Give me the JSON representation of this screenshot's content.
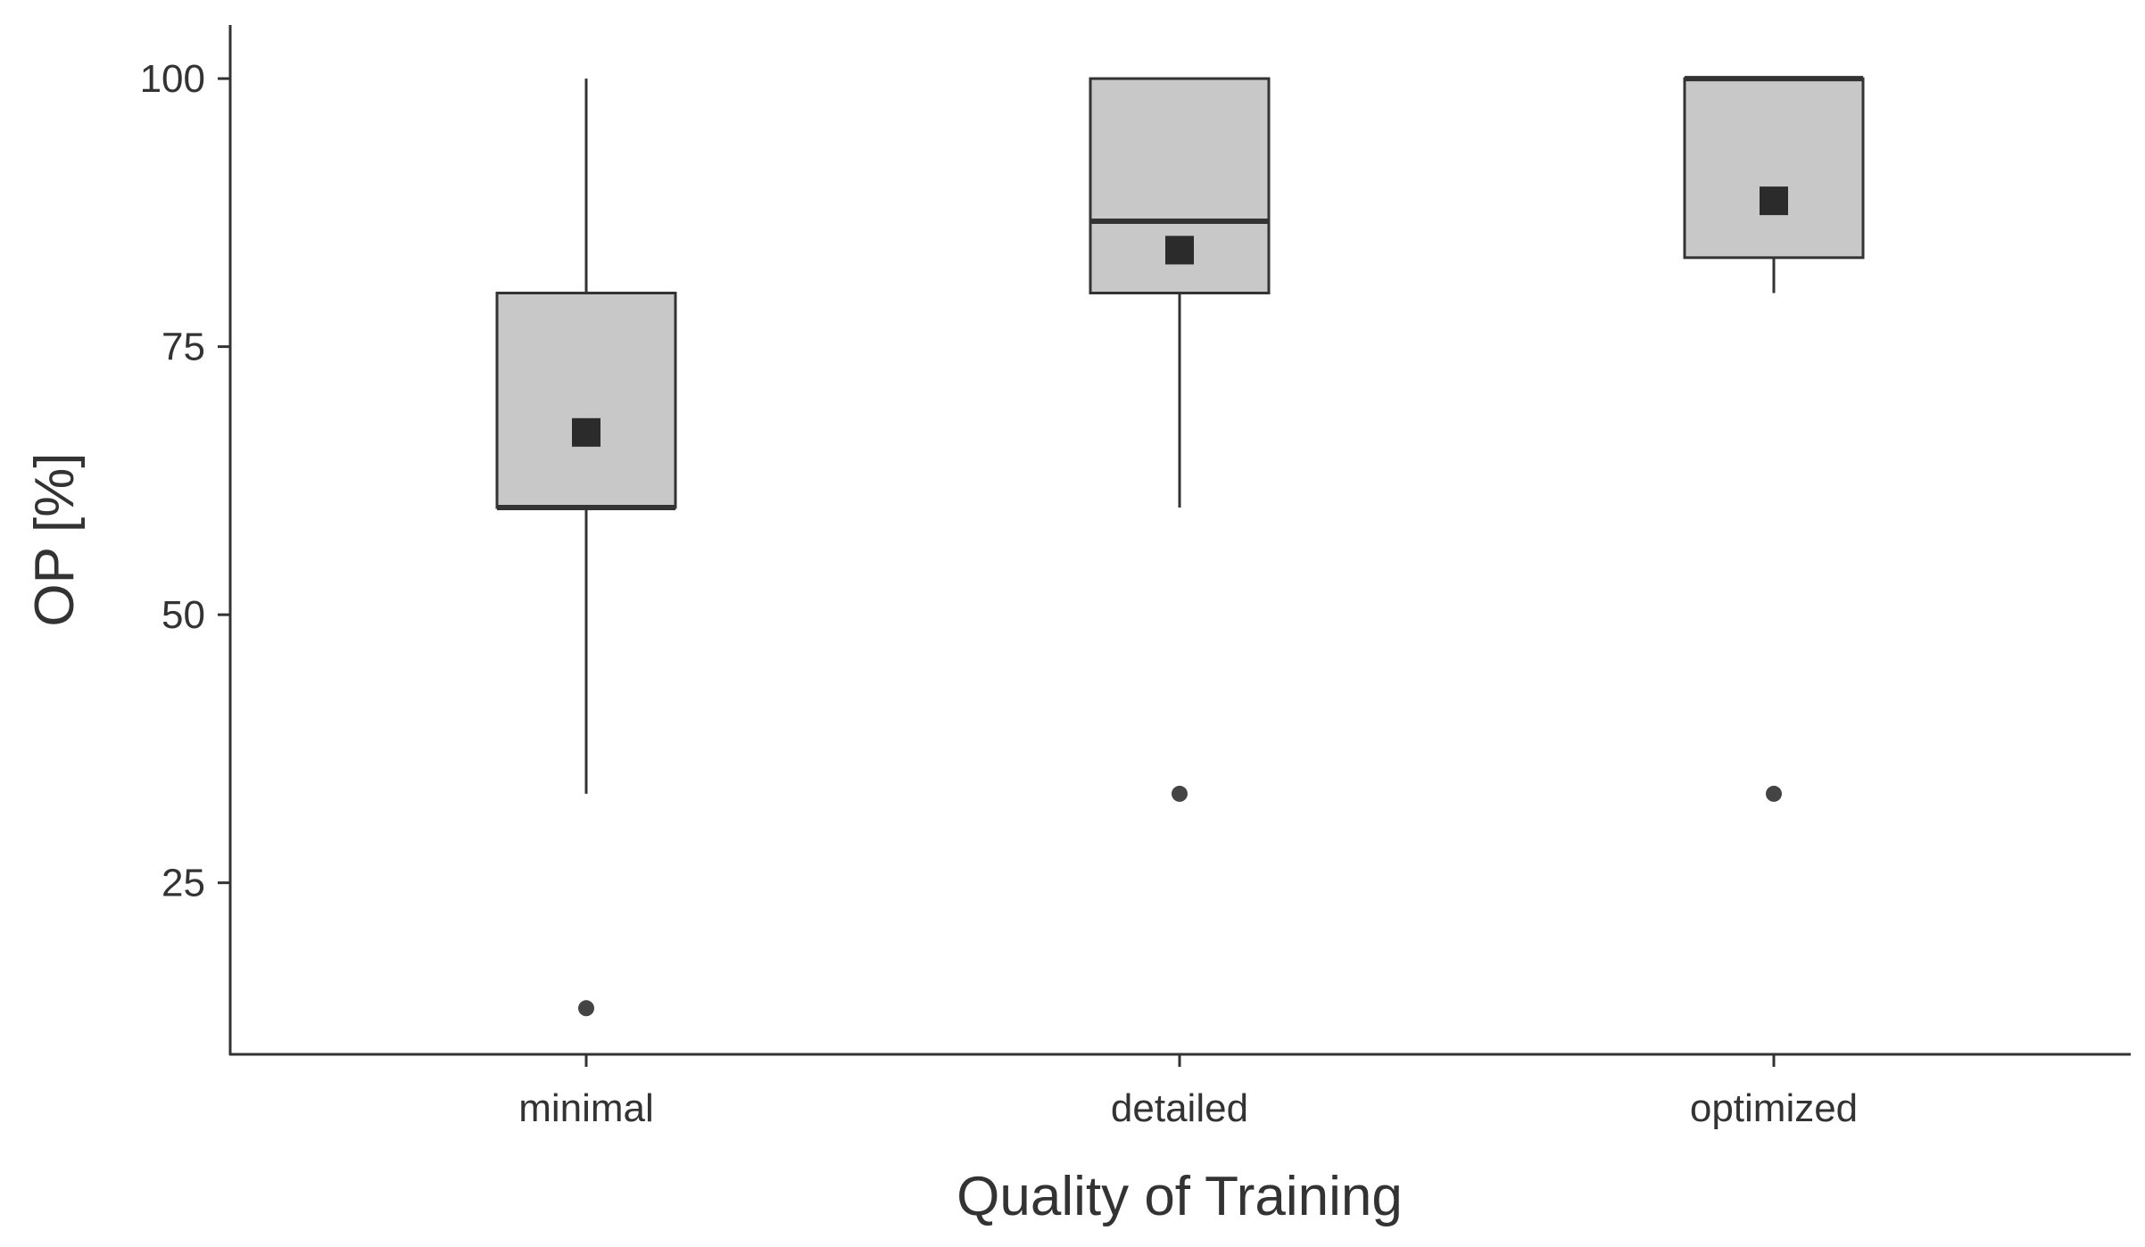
{
  "chart_data": {
    "type": "box",
    "title": "",
    "xlabel": "Quality of Training",
    "ylabel": "OP [%]",
    "ylim": [
      9,
      105
    ],
    "y_ticks": [
      25,
      50,
      75,
      100
    ],
    "grid": false,
    "legend": "none",
    "colors": {
      "box_fill": "#c8c8c8",
      "line": "#333333",
      "mean_marker": "#2b2b2b",
      "outlier": "#444444"
    },
    "categories": [
      "minimal",
      "detailed",
      "optimized"
    ],
    "boxes": [
      {
        "category": "minimal",
        "whisker_low": 33.3,
        "q1": 60,
        "median": 60,
        "q3": 80,
        "whisker_high": 100,
        "mean": 67,
        "outliers": [
          13.3
        ]
      },
      {
        "category": "detailed",
        "whisker_low": 60,
        "q1": 80,
        "median": 86.7,
        "q3": 100,
        "whisker_high": 100,
        "mean": 84,
        "outliers": [
          33.3
        ]
      },
      {
        "category": "optimized",
        "whisker_low": 80,
        "q1": 83.3,
        "median": 100,
        "q3": 100,
        "whisker_high": 100,
        "mean": 88.6,
        "outliers": [
          33.3
        ]
      }
    ]
  }
}
